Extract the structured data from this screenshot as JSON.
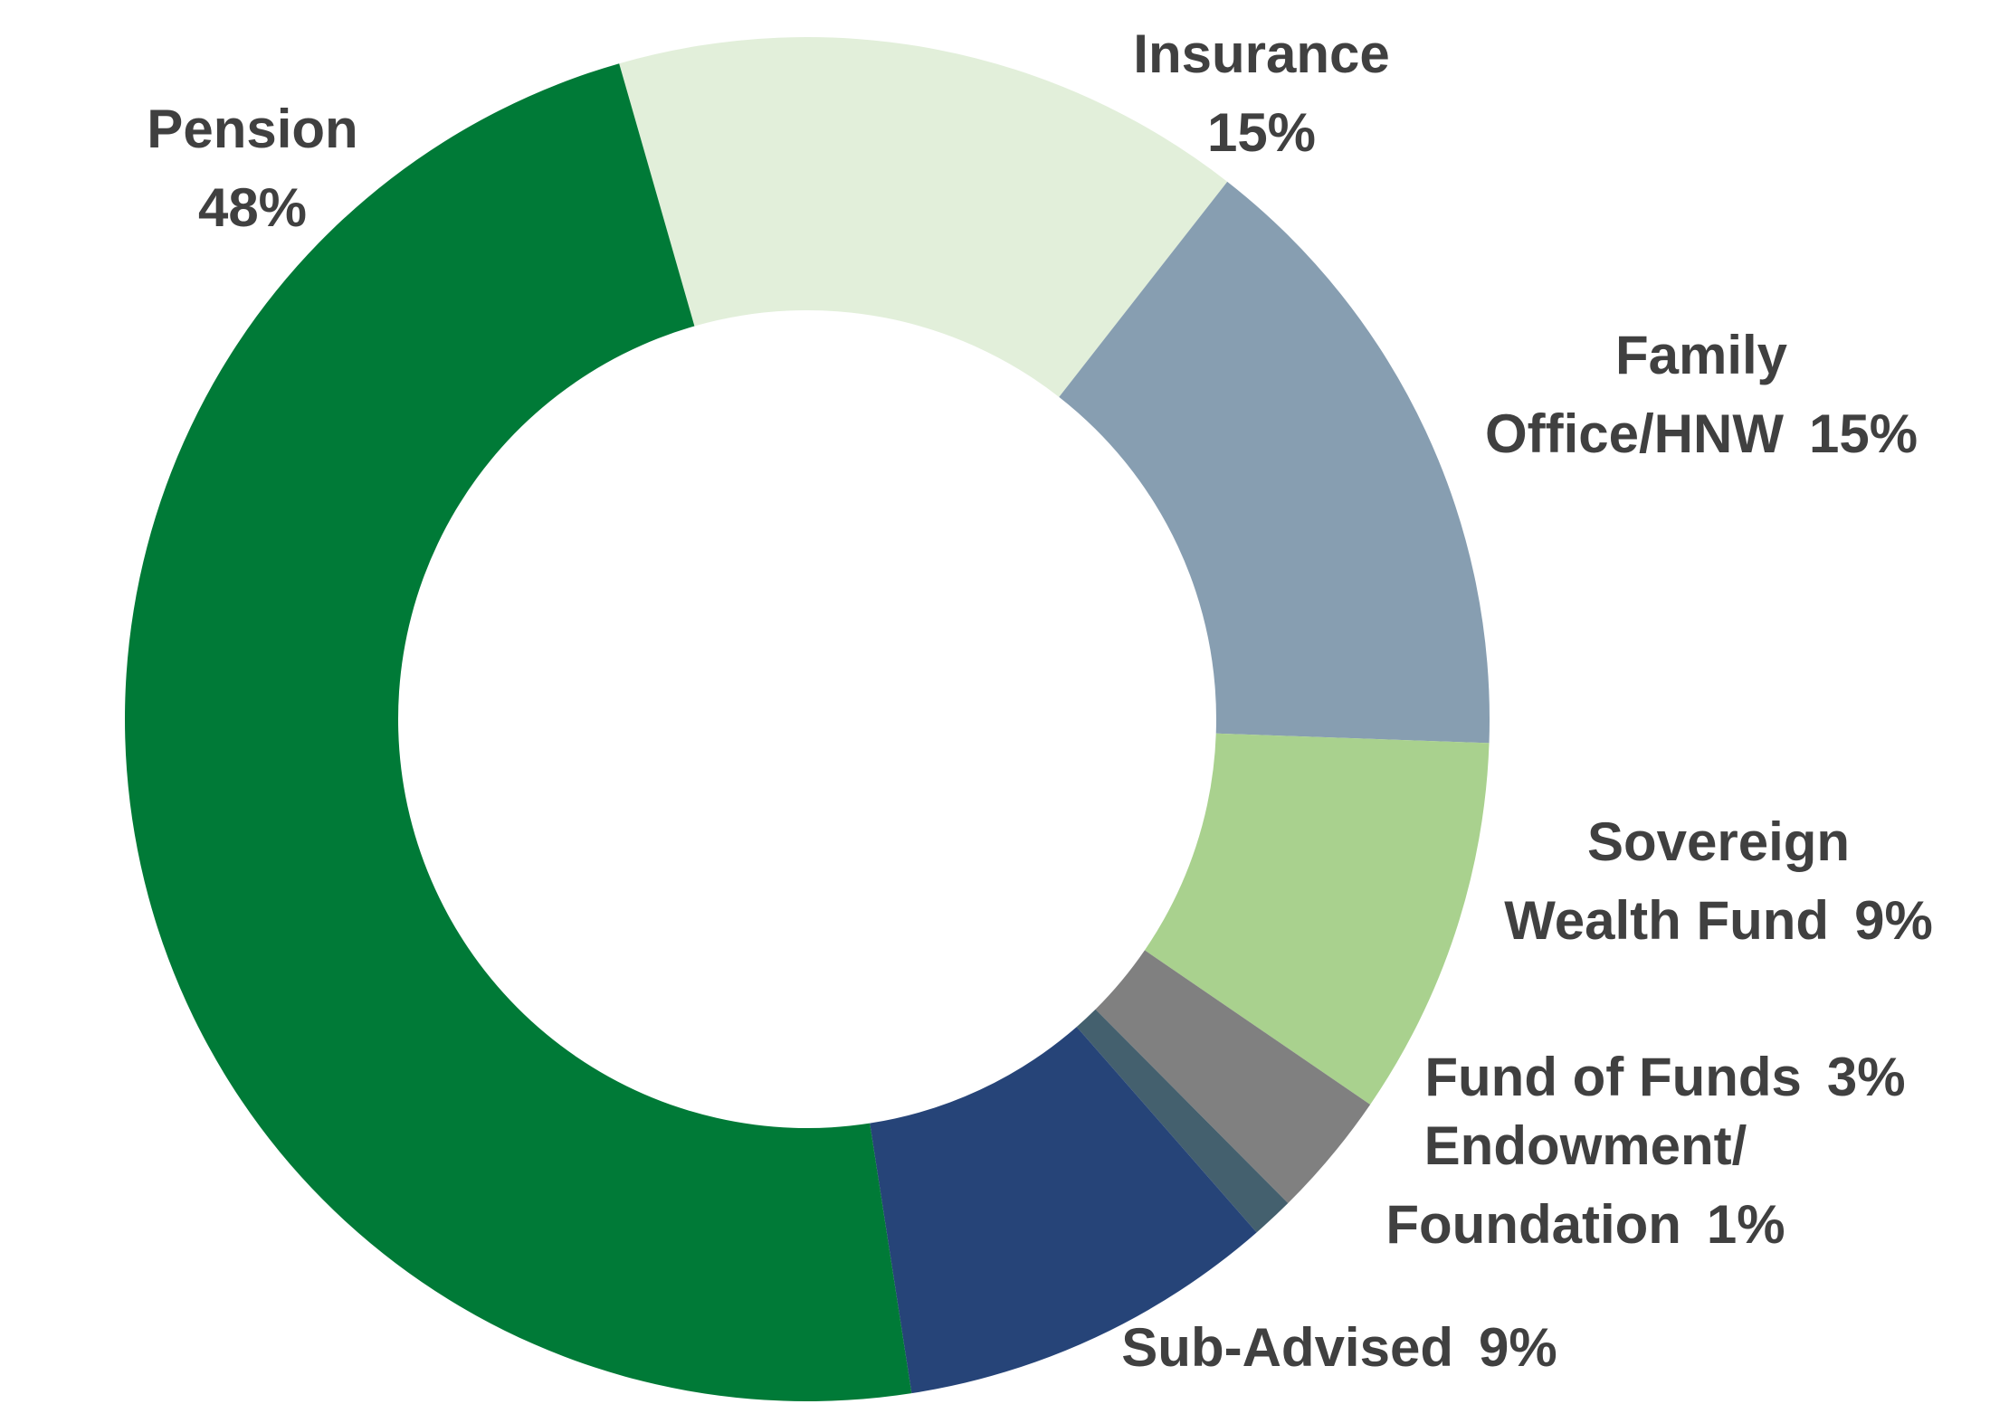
{
  "chart_data": {
    "type": "donut",
    "categories": [
      "Insurance",
      "Family\nOffice/HNW",
      "Sovereign\nWealth Fund",
      "Fund of Funds",
      "Endowment/\nFoundation",
      "Sub-Advised",
      "Pension"
    ],
    "values": [
      15,
      15,
      9,
      3,
      1,
      9,
      48
    ],
    "value_labels": [
      "15%",
      "15%",
      "9%",
      "3%",
      "1%",
      "9%",
      "48%"
    ],
    "colors": [
      "#e2efda",
      "#879eb1",
      "#a9d18e",
      "#808080",
      "#44606e",
      "#264478",
      "#007a37"
    ]
  }
}
